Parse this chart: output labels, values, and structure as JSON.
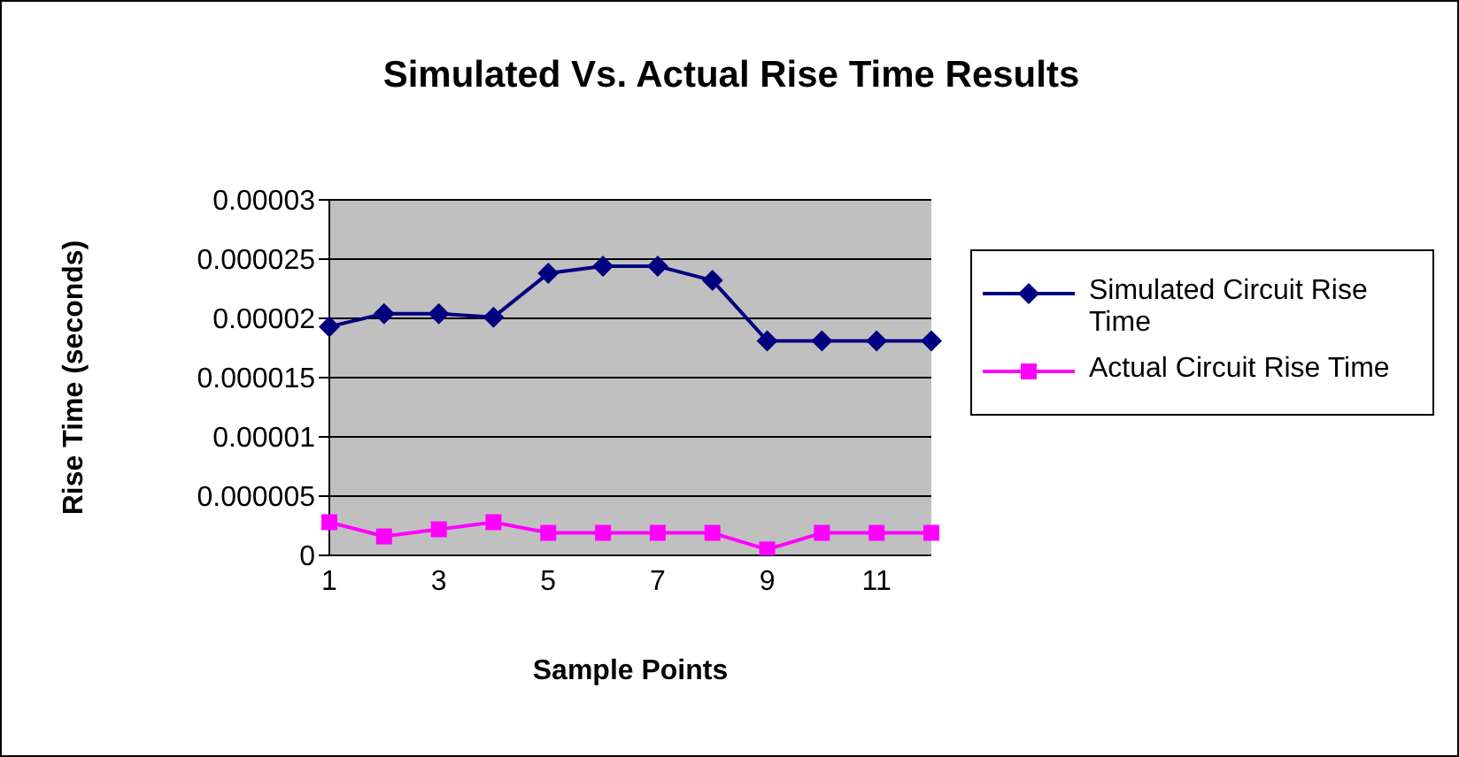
{
  "chart_data": {
    "type": "line",
    "title": "Simulated Vs. Actual Rise Time Results",
    "xlabel": "Sample Points",
    "ylabel": "Rise Time (seconds)",
    "categories": [
      "1",
      null,
      "3",
      null,
      "5",
      null,
      "7",
      null,
      "9",
      null,
      "11",
      null
    ],
    "series": [
      {
        "name": "Simulated Circuit Rise Time",
        "color": "#000080",
        "marker": "diamond",
        "values": [
          1.93e-05,
          2.04e-05,
          2.04e-05,
          2.01e-05,
          2.38e-05,
          2.44e-05,
          2.44e-05,
          2.32e-05,
          1.81e-05,
          1.81e-05,
          1.81e-05,
          1.81e-05
        ]
      },
      {
        "name": "Actual Circuit Rise Time",
        "color": "#ff00ff",
        "marker": "square",
        "values": [
          2.8e-06,
          1.6e-06,
          2.2e-06,
          2.8e-06,
          1.9e-06,
          1.9e-06,
          1.9e-06,
          1.9e-06,
          5e-07,
          1.9e-06,
          1.9e-06,
          1.9e-06
        ]
      }
    ],
    "ylim": [
      0,
      3e-05
    ],
    "yticks": [
      0,
      {
        "value": 5e-06,
        "label": "0.000005"
      },
      {
        "value": 1e-05,
        "label": "0.00001"
      },
      {
        "value": 1.5e-05,
        "label": "0.000015"
      },
      {
        "value": 2e-05,
        "label": "0.00002"
      },
      {
        "value": 2.5e-05,
        "label": "0.000025"
      },
      {
        "value": 3e-05,
        "label": "0.00003"
      }
    ],
    "grid": "y",
    "legend": "right"
  }
}
